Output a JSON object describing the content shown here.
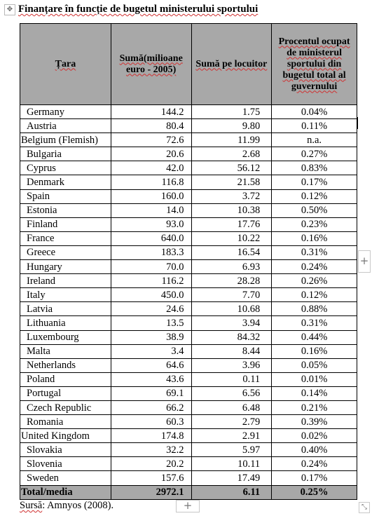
{
  "icons": {
    "move": "move-icon",
    "add_row": "plus-icon",
    "add_column": "plus-icon",
    "resize": "resize-icon"
  },
  "title": "Finanțare în funcție de bugetul ministerului sportului",
  "table": {
    "headers": [
      "Țara",
      "Sumă(milioane euro - 2005)",
      "Sumă pe locuitor",
      "Procentul ocupat de ministerul sportului din bugetul total al guvernului"
    ],
    "rows": [
      [
        "Germany",
        "144.2",
        "1.75",
        "0.04%"
      ],
      [
        "Austria",
        "80.4",
        "9.80",
        "0.11%"
      ],
      [
        "Belgium (Flemish)",
        "72.6",
        "11.99",
        "n.a."
      ],
      [
        "Bulgaria",
        "20.6",
        "2.68",
        "0.27%"
      ],
      [
        "Cyprus",
        "42.0",
        "56.12",
        "0.83%"
      ],
      [
        "Denmark",
        "116.8",
        "21.58",
        "0.17%"
      ],
      [
        "Spain",
        "160.0",
        "3.72",
        "0.12%"
      ],
      [
        "Estonia",
        "14.0",
        "10.38",
        "0.50%"
      ],
      [
        "Finland",
        "93.0",
        "17.76",
        "0.23%"
      ],
      [
        "France",
        "640.0",
        "10.22",
        "0.16%"
      ],
      [
        "Greece",
        "183.3",
        "16.54",
        "0.31%"
      ],
      [
        "Hungary",
        "70.0",
        "6.93",
        "0.24%"
      ],
      [
        "Ireland",
        "116.2",
        "28.28",
        "0.26%"
      ],
      [
        "Italy",
        "450.0",
        "7.70",
        "0.12%"
      ],
      [
        "Latvia",
        "24.6",
        "10.68",
        "0.88%"
      ],
      [
        "Lithuania",
        "13.5",
        "3.94",
        "0.31%"
      ],
      [
        "Luxembourg",
        "38.9",
        "84.32",
        "0.44%"
      ],
      [
        "Malta",
        "3.4",
        "8.44",
        "0.16%"
      ],
      [
        "Netherlands",
        "64.6",
        "3.96",
        "0.05%"
      ],
      [
        "Poland",
        "43.6",
        "0.11",
        "0.01%"
      ],
      [
        "Portugal",
        "69.1",
        "6.56",
        "0.14%"
      ],
      [
        "Czech Republic",
        "66.2",
        "6.48",
        "0.21%"
      ],
      [
        "Romania",
        "60.3",
        "2.79",
        "0.39%"
      ],
      [
        "United Kingdom",
        "174.8",
        "2.91",
        "0.02%"
      ],
      [
        "Slovakia",
        "32.2",
        "5.97",
        "0.40%"
      ],
      [
        "Slovenia",
        "20.2",
        "10.11",
        "0.24%"
      ],
      [
        "Sweden",
        "157.6",
        "17.49",
        "0.17%"
      ]
    ],
    "total": [
      "Total/media",
      "2972.1",
      "6.11",
      "0.25%"
    ]
  },
  "source_label": "Sursă",
  "source_text": ": Amnyos (2008)."
}
